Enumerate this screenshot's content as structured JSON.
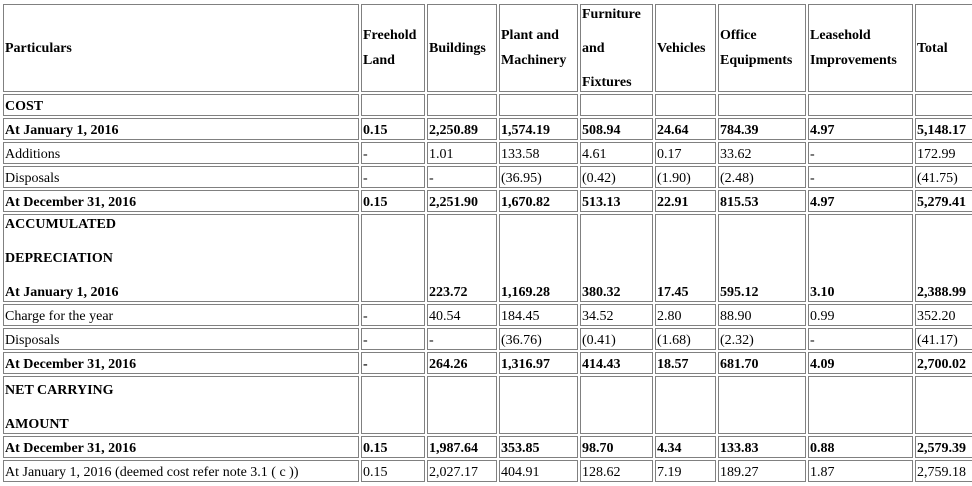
{
  "headers": {
    "particulars": "Particulars",
    "freehold_land": [
      "Freehold",
      "Land"
    ],
    "buildings": "Buildings",
    "plant_machinery": [
      "Plant and",
      "Machinery"
    ],
    "furniture_fixtures": [
      "Furniture",
      "and",
      "Fixtures"
    ],
    "vehicles": "Vehicles",
    "office_equipments": [
      "Office",
      "Equipments"
    ],
    "leasehold_improvements": [
      "Leasehold",
      "Improvements"
    ],
    "total": "Total"
  },
  "sections": {
    "cost": "COST",
    "accumulated_depreciation": [
      "ACCUMULATED",
      "DEPRECIATION"
    ],
    "net_carrying_amount": [
      "NET CARRYING",
      "AMOUNT"
    ]
  },
  "rows": {
    "cost_jan": [
      "At January 1, 2016",
      "0.15",
      "2,250.89",
      "1,574.19",
      "508.94",
      "24.64",
      "784.39",
      "4.97",
      "5,148.17"
    ],
    "cost_additions": [
      "Additions",
      "-",
      "1.01",
      "133.58",
      "4.61",
      "0.17",
      "33.62",
      "-",
      "172.99"
    ],
    "cost_disposals": [
      "Disposals",
      "-",
      "-",
      "(36.95)",
      "(0.42)",
      "(1.90)",
      "(2.48)",
      "-",
      "(41.75)"
    ],
    "cost_dec": [
      "At December 31, 2016",
      "0.15",
      "2,251.90",
      "1,670.82",
      "513.13",
      "22.91",
      "815.53",
      "4.97",
      "5,279.41"
    ],
    "dep_jan": [
      "At January 1, 2016",
      "",
      "223.72",
      "1,169.28",
      "380.32",
      "17.45",
      "595.12",
      "3.10",
      "2,388.99"
    ],
    "dep_charge": [
      "Charge for the year",
      "-",
      "40.54",
      "184.45",
      "34.52",
      "2.80",
      "88.90",
      "0.99",
      "352.20"
    ],
    "dep_disposals": [
      "Disposals",
      "-",
      "-",
      "(36.76)",
      "(0.41)",
      "(1.68)",
      "(2.32)",
      "-",
      "(41.17)"
    ],
    "dep_dec": [
      "At December 31, 2016",
      "-",
      "264.26",
      "1,316.97",
      "414.43",
      "18.57",
      "681.70",
      "4.09",
      "2,700.02"
    ],
    "net_dec": [
      "At December 31, 2016",
      "0.15",
      "1,987.64",
      "353.85",
      "98.70",
      "4.34",
      "133.83",
      "0.88",
      "2,579.39"
    ],
    "net_jan": [
      "At January 1, 2016 (deemed cost refer note 3.1 ( c ))",
      "0.15",
      "2,027.17",
      "404.91",
      "128.62",
      "7.19",
      "189.27",
      "1.87",
      "2,759.18"
    ]
  }
}
